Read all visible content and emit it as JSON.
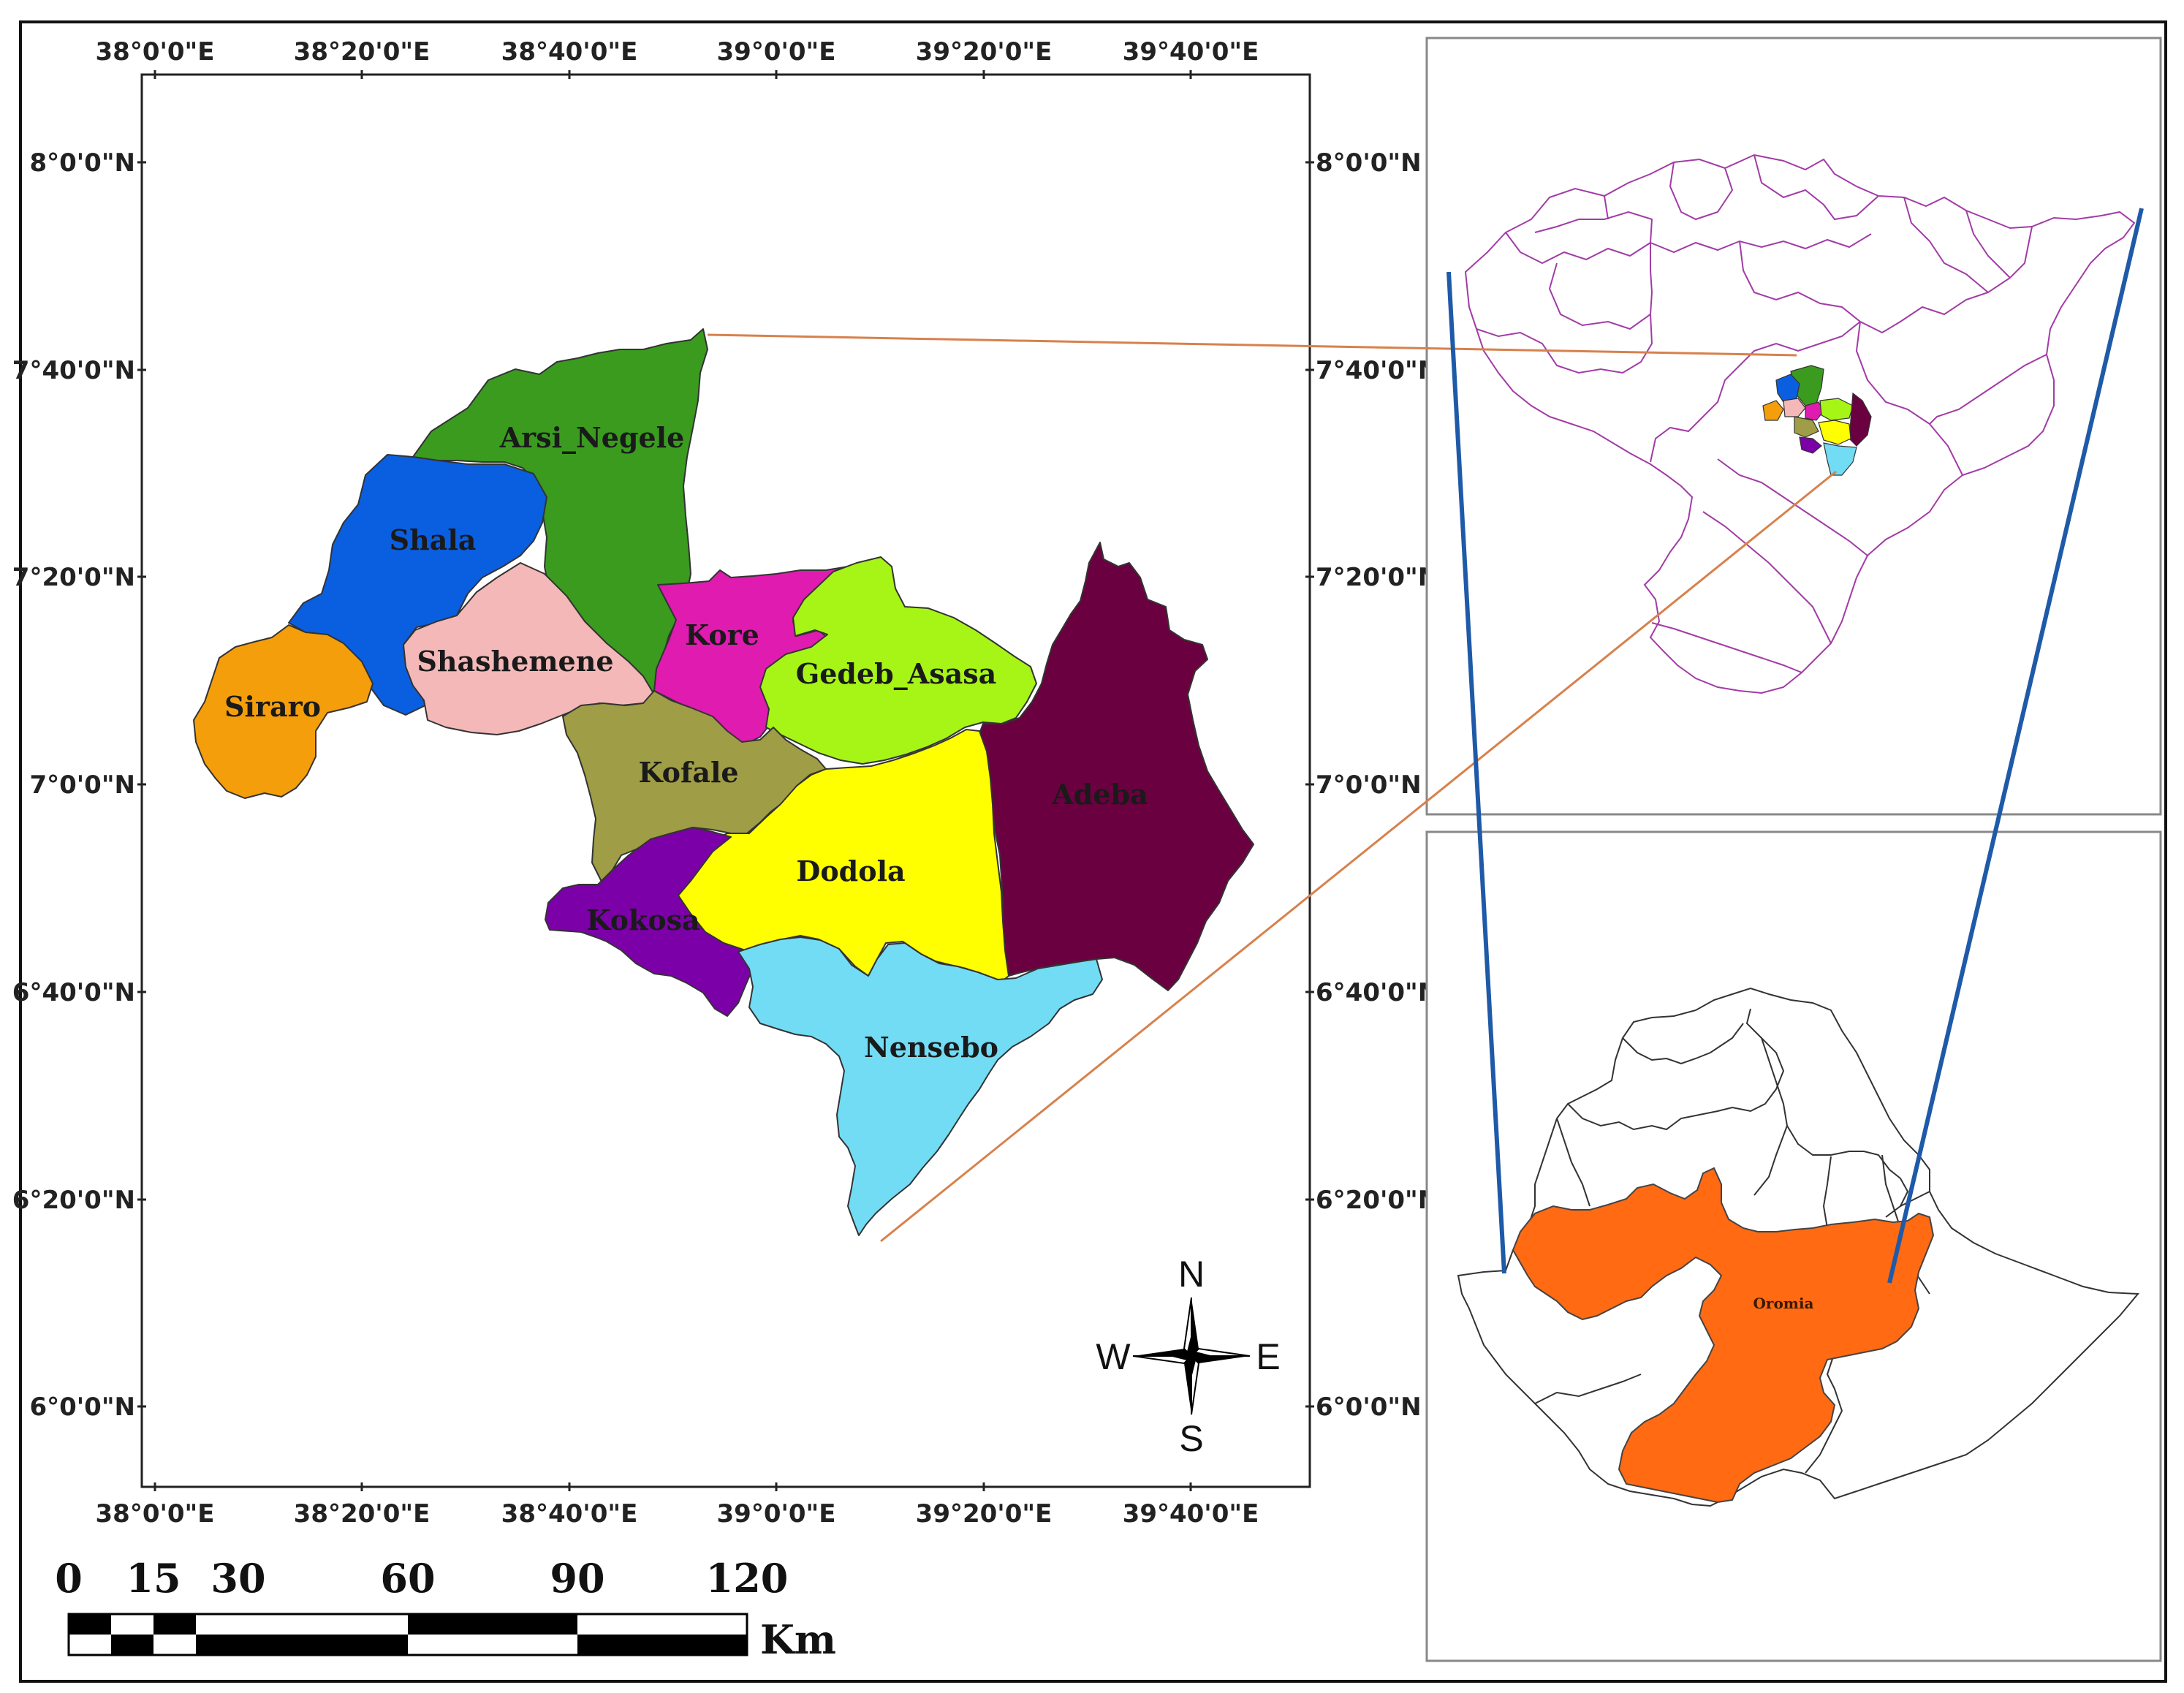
{
  "map": {
    "x_ticks": [
      "38°0'0\"E",
      "38°20'0\"E",
      "38°40'0\"E",
      "39°0'0\"E",
      "39°20'0\"E",
      "39°40'0\"E"
    ],
    "y_ticks": [
      "8°0'0\"N",
      "7°40'0\"N",
      "7°20'0\"N",
      "7°0'0\"N",
      "6°40'0\"N",
      "6°20'0\"N",
      "6°0'0\"N"
    ],
    "districts": [
      {
        "name": "Arsi_Negele",
        "color": "#3a9b1f"
      },
      {
        "name": "Shala",
        "color": "#0a5ee0"
      },
      {
        "name": "Shashemene",
        "color": "#f4b8b8"
      },
      {
        "name": "Siraro",
        "color": "#f59e0b"
      },
      {
        "name": "Kore",
        "color": "#e01bb0"
      },
      {
        "name": "Gedeb_Asasa",
        "color": "#a6f516"
      },
      {
        "name": "Kofale",
        "color": "#9f9d45"
      },
      {
        "name": "Adeba",
        "color": "#6b0040"
      },
      {
        "name": "Dodola",
        "color": "#ffff00"
      },
      {
        "name": "Kokosa",
        "color": "#7c00a8"
      },
      {
        "name": "Nensebo",
        "color": "#72dcf5"
      }
    ],
    "compass": {
      "n": "N",
      "s": "S",
      "e": "E",
      "w": "W"
    },
    "scale": {
      "labels": [
        "0",
        "15",
        "30",
        "60",
        "90",
        "120"
      ],
      "unit": "Km"
    }
  },
  "insets": {
    "ethiopia_region_label": "Oromia",
    "oromia_color": "#ff6a13",
    "outline_color": "#a23ba6",
    "orange_line_color": "#d7814c",
    "blue_line_color": "#1f5aa8"
  }
}
